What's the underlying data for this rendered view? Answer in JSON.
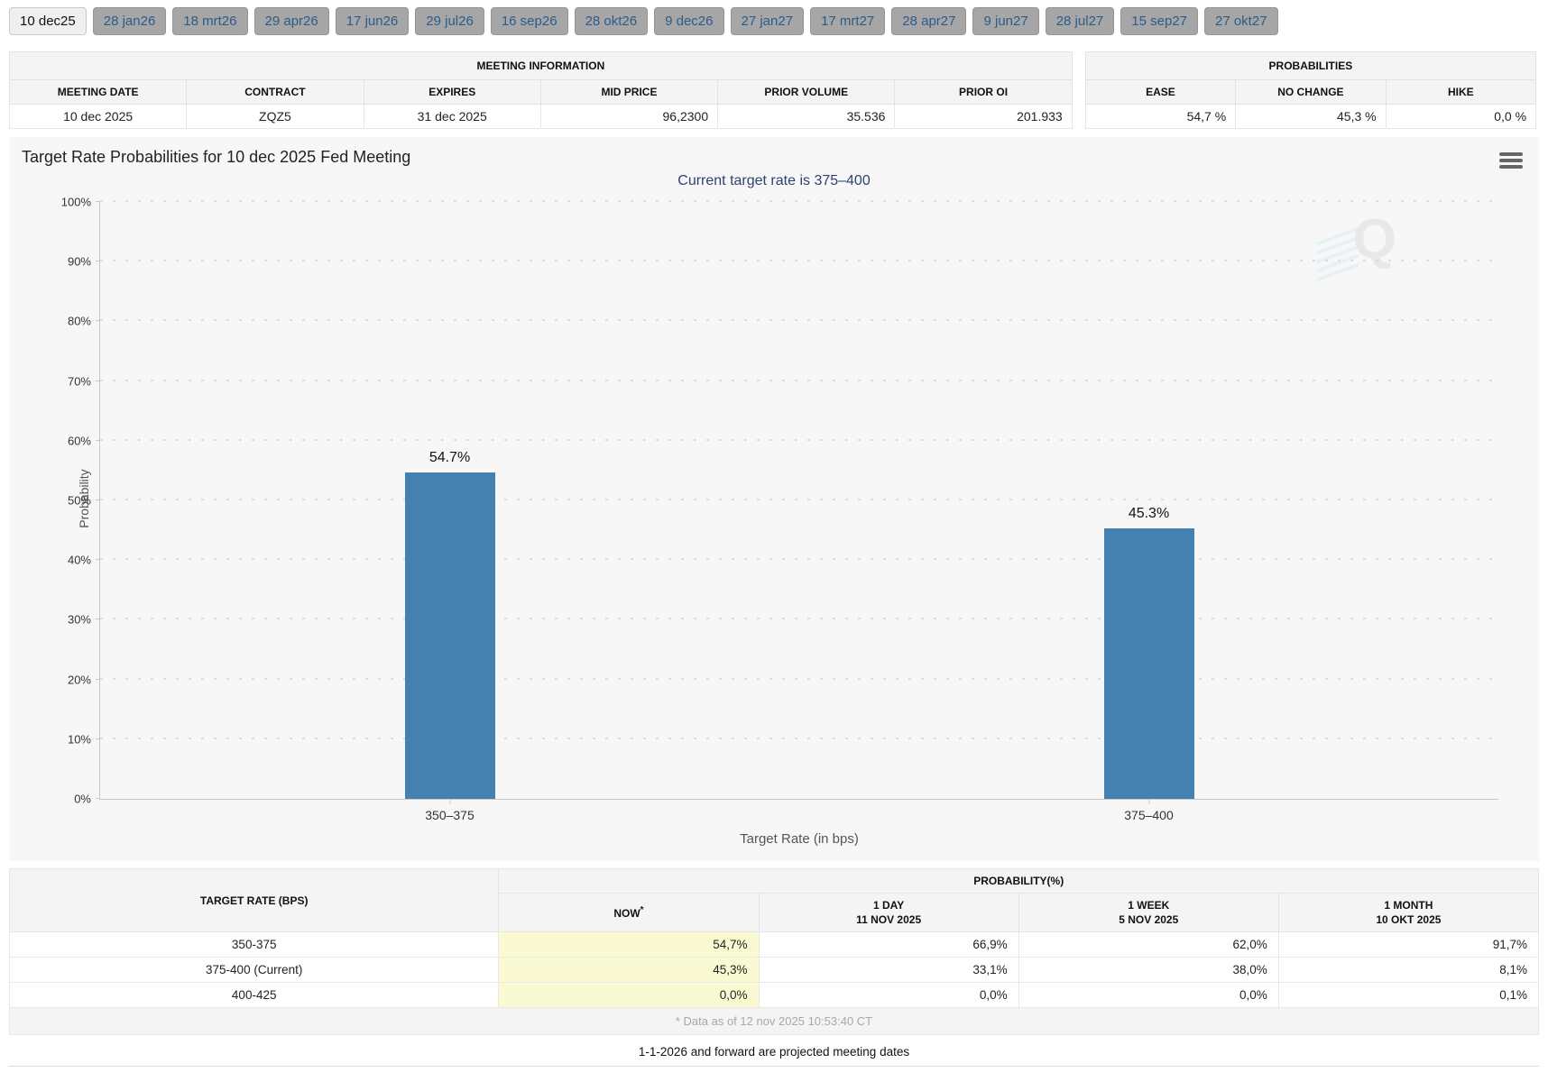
{
  "tabs": [
    {
      "label": "10 dec25",
      "active": true
    },
    {
      "label": "28 jan26",
      "active": false
    },
    {
      "label": "18 mrt26",
      "active": false
    },
    {
      "label": "29 apr26",
      "active": false
    },
    {
      "label": "17 jun26",
      "active": false
    },
    {
      "label": "29 jul26",
      "active": false
    },
    {
      "label": "16 sep26",
      "active": false
    },
    {
      "label": "28 okt26",
      "active": false
    },
    {
      "label": "9 dec26",
      "active": false
    },
    {
      "label": "27 jan27",
      "active": false
    },
    {
      "label": "17 mrt27",
      "active": false
    },
    {
      "label": "28 apr27",
      "active": false
    },
    {
      "label": "9 jun27",
      "active": false
    },
    {
      "label": "28 jul27",
      "active": false
    },
    {
      "label": "15 sep27",
      "active": false
    },
    {
      "label": "27 okt27",
      "active": false
    }
  ],
  "meeting_info": {
    "title": "MEETING INFORMATION",
    "columns": [
      "MEETING DATE",
      "CONTRACT",
      "EXPIRES",
      "MID PRICE",
      "PRIOR VOLUME",
      "PRIOR OI"
    ],
    "row": [
      "10 dec 2025",
      "ZQZ5",
      "31 dec 2025",
      "96,2300",
      "35.536",
      "201.933"
    ]
  },
  "probabilities": {
    "title": "PROBABILITIES",
    "columns": [
      "EASE",
      "NO CHANGE",
      "HIKE"
    ],
    "row": [
      "54,7 %",
      "45,3 %",
      "0,0 %"
    ]
  },
  "chart": {
    "title": "Target Rate Probabilities for 10 dec 2025 Fed Meeting",
    "subtitle": "Current target rate is 375–400",
    "menu_icon": "hamburger-icon",
    "watermark_letter": "Q"
  },
  "chart_data": {
    "type": "bar",
    "categories": [
      "350–375",
      "375–400"
    ],
    "values": [
      54.7,
      45.3
    ],
    "labels": [
      "54.7%",
      "45.3%"
    ],
    "title": "Target Rate Probabilities for 10 dec 2025 Fed Meeting",
    "subtitle": "Current target rate is 375–400",
    "xlabel": "Target Rate (in bps)",
    "ylabel": "Probability",
    "ylim": [
      0,
      100
    ],
    "ytick_step": 10,
    "ytick_suffix": "%",
    "grid": "dotted",
    "legend": "none",
    "bar_color": "#4480b0"
  },
  "probability_table": {
    "corner_header": "TARGET RATE (BPS)",
    "group_header": "PROBABILITY(%)",
    "columns": [
      {
        "label": "NOW",
        "sup": "*",
        "date": ""
      },
      {
        "label": "1 DAY",
        "date": "11 NOV 2025"
      },
      {
        "label": "1 WEEK",
        "date": "5 NOV 2025"
      },
      {
        "label": "1 MONTH",
        "date": "10 OKT 2025"
      }
    ],
    "rows": [
      [
        "350-375",
        "54,7%",
        "66,9%",
        "62,0%",
        "91,7%"
      ],
      [
        "375-400 (Current)",
        "45,3%",
        "33,1%",
        "38,0%",
        "8,1%"
      ],
      [
        "400-425",
        "0,0%",
        "0,0%",
        "0,0%",
        "0,1%"
      ]
    ],
    "footnote": "* Data as of 12 nov 2025 10:53:40 CT"
  },
  "footer_note": "1-1-2026 and forward are projected meeting dates",
  "colors": {
    "bar-blue": "#4480b0",
    "subtitle-navy": "#2e4172",
    "highlight-yellow": "#fafad2",
    "tab-text": "#2b5c8a"
  }
}
